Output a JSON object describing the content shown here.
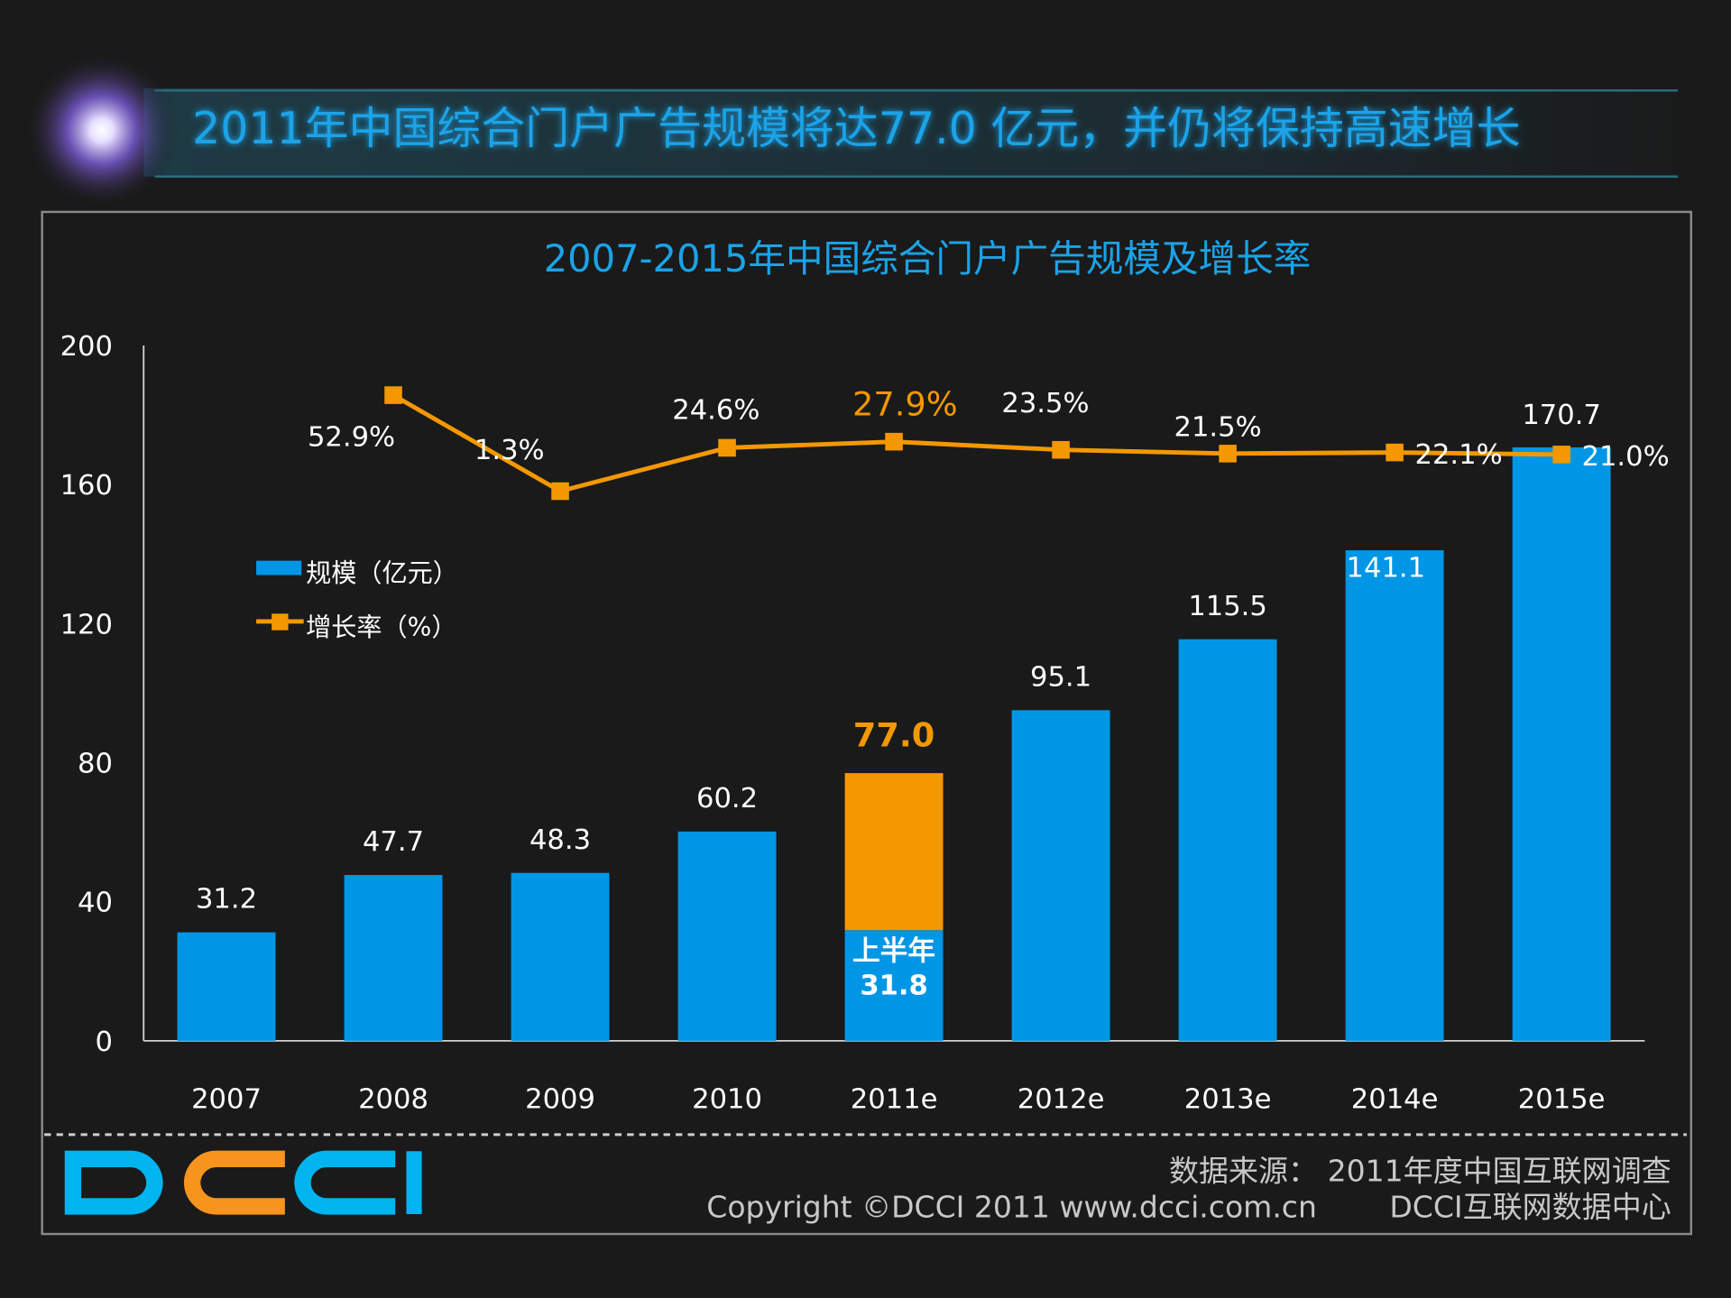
{
  "header": {
    "title": "2011年中国综合门户广告规模将达77.0 亿元，并仍将保持高速增长"
  },
  "colors": {
    "bar": "#0096e6",
    "highlight": "#f39800",
    "title": "#1aa3e8",
    "background": "#1a1a1a",
    "footer_text": "#c8c8c8"
  },
  "chart_data": {
    "type": "bar",
    "title": "2007-2015年中国综合门户广告规模及增长率",
    "categories": [
      "2007",
      "2008",
      "2009",
      "2010",
      "2011e",
      "2012e",
      "2013e",
      "2014e",
      "2015e"
    ],
    "ylim": [
      0,
      200
    ],
    "yticks": [
      "0",
      "40",
      "80",
      "120",
      "160",
      "200"
    ],
    "grid": false,
    "legend_placement": "upper-left",
    "series": [
      {
        "name": "规模（亿元）",
        "type": "bar",
        "values": [
          31.2,
          47.7,
          48.3,
          60.2,
          77.0,
          95.1,
          115.5,
          141.1,
          170.7
        ],
        "labels": [
          "31.2",
          "47.7",
          "48.3",
          "60.2",
          "77.0",
          "95.1",
          "115.5",
          "141.1",
          "170.7"
        ]
      },
      {
        "name": "增长率（%）",
        "type": "line",
        "values": [
          null,
          52.9,
          1.3,
          24.6,
          27.9,
          23.5,
          21.5,
          22.1,
          21.0
        ],
        "labels": [
          "",
          "52.9%",
          "1.3%",
          "24.6%",
          "27.9%",
          "23.5%",
          "21.5%",
          "22.1%",
          "21.0%"
        ]
      }
    ],
    "annotation": {
      "category": "2011e",
      "label": "上半年",
      "value": 31.8,
      "value_label": "31.8"
    }
  },
  "footer": {
    "logo": "DCCI",
    "source": "数据来源： 2011年度中国互联网调查",
    "copyright": "Copyright ©DCCI 2011 www.dcci.com.cn",
    "org": "DCCI互联网数据中心"
  }
}
